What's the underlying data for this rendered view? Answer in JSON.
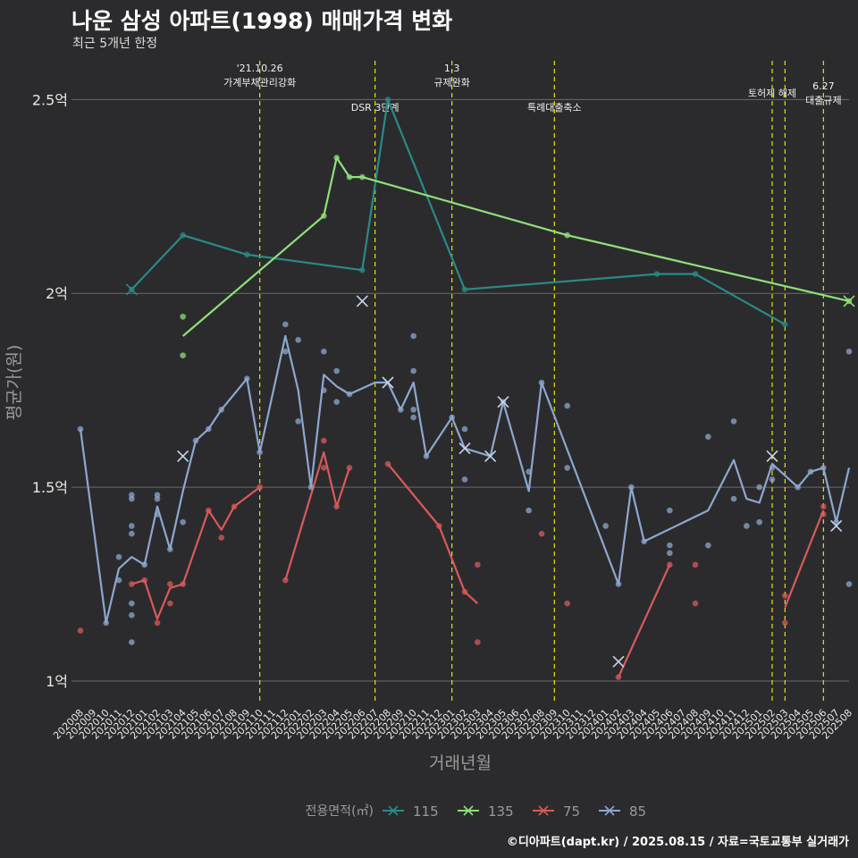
{
  "title": "나운 삼성 아파트(1998) 매매가격 변화",
  "subtitle": "최근 5개년 한정",
  "footer": "©디아파트(dapt.kr) / 2025.08.15 / 자료=국토교통부 실거래가",
  "colors": {
    "background": "#2b2b2d",
    "grid": "#6b6b6b",
    "event_line": "#e6e600",
    "text": "#e8e8e8",
    "axis_title": "#9a9a9a"
  },
  "chart_data": {
    "type": "line",
    "xlabel": "거래년월",
    "ylabel": "평균가(원)",
    "ylim": [
      0.94,
      2.6
    ],
    "yticks": [
      {
        "value": 1.0,
        "label": "1억"
      },
      {
        "value": 1.5,
        "label": "1.5억"
      },
      {
        "value": 2.0,
        "label": "2억"
      },
      {
        "value": 2.5,
        "label": "2.5억"
      }
    ],
    "grid": true,
    "legend": {
      "title": "전용면적(㎡)",
      "position": "bottom"
    },
    "categories": [
      "202008",
      "202009",
      "202010",
      "202011",
      "202012",
      "202101",
      "202102",
      "202103",
      "202104",
      "202105",
      "202106",
      "202107",
      "202108",
      "202109",
      "202110",
      "202111",
      "202112",
      "202201",
      "202202",
      "202203",
      "202204",
      "202205",
      "202206",
      "202207",
      "202208",
      "202209",
      "202210",
      "202211",
      "202212",
      "202301",
      "202302",
      "202303",
      "202304",
      "202305",
      "202306",
      "202307",
      "202308",
      "202309",
      "202310",
      "202311",
      "202312",
      "202401",
      "202402",
      "202403",
      "202404",
      "202405",
      "202406",
      "202407",
      "202408",
      "202409",
      "202410",
      "202411",
      "202412",
      "202501",
      "202502",
      "202503",
      "202504",
      "202505",
      "202506",
      "202507",
      "202508"
    ],
    "events": [
      {
        "x": "202110",
        "label": "'21.10.26\n가계부채관리강화",
        "row": 0
      },
      {
        "x": "202207",
        "label": "DSR 3단계",
        "row": 2
      },
      {
        "x": "202301",
        "label": "1.3\n규제완화",
        "row": 0
      },
      {
        "x": "202309",
        "label": "특례대출축소",
        "row": 2
      },
      {
        "x": "202502",
        "label": "토허제 해제",
        "row": 1
      },
      {
        "x": "202503",
        "label": "",
        "row": 0
      },
      {
        "x": "202506",
        "label": "6.27\n대출규제",
        "row": 3
      }
    ],
    "series": [
      {
        "name": "115",
        "color": "#2a8a86",
        "line": [
          [
            "202012",
            2.01
          ],
          [
            "202104",
            2.15
          ],
          [
            "202109",
            2.1
          ],
          [
            "202206",
            2.06
          ],
          [
            "202208",
            2.5
          ],
          [
            "202302",
            2.01
          ],
          [
            "202405",
            2.05
          ],
          [
            "202408",
            2.05
          ],
          [
            "202503",
            1.92
          ]
        ],
        "points": [
          [
            "202012",
            2.01
          ],
          [
            "202104",
            2.15
          ],
          [
            "202109",
            2.1
          ],
          [
            "202206",
            2.06
          ],
          [
            "202208",
            2.5
          ],
          [
            "202302",
            2.01
          ],
          [
            "202405",
            2.05
          ],
          [
            "202408",
            2.05
          ],
          [
            "202503",
            1.92
          ]
        ],
        "cross": [
          [
            "202012",
            2.01
          ]
        ]
      },
      {
        "name": "135",
        "color": "#8fe07a",
        "line": [
          [
            "202104",
            1.89
          ],
          [
            "202203",
            2.2
          ],
          [
            "202204",
            2.35
          ],
          [
            "202205",
            2.3
          ],
          [
            "202206",
            2.3
          ],
          [
            "202310",
            2.15
          ],
          [
            "202508",
            1.98
          ]
        ],
        "points": [
          [
            "202104",
            1.94
          ],
          [
            "202104",
            1.84
          ],
          [
            "202203",
            2.2
          ],
          [
            "202204",
            2.35
          ],
          [
            "202205",
            2.3
          ],
          [
            "202206",
            2.3
          ],
          [
            "202310",
            2.15
          ],
          [
            "202508",
            1.98
          ]
        ],
        "cross": [
          [
            "202508",
            1.98
          ]
        ]
      },
      {
        "name": "75",
        "color": "#d95a5a",
        "segments": [
          [
            [
              "202012",
              1.25
            ],
            [
              "202101",
              1.26
            ],
            [
              "202102",
              1.16
            ],
            [
              "202103",
              1.24
            ],
            [
              "202104",
              1.25
            ],
            [
              "202106",
              1.44
            ],
            [
              "202107",
              1.39
            ],
            [
              "202108",
              1.45
            ],
            [
              "202110",
              1.5
            ]
          ],
          [
            [
              "202112",
              1.26
            ],
            [
              "202203",
              1.59
            ],
            [
              "202204",
              1.45
            ],
            [
              "202205",
              1.55
            ]
          ],
          [
            [
              "202208",
              1.56
            ],
            [
              "202212",
              1.4
            ],
            [
              "202302",
              1.23
            ],
            [
              "202303",
              1.2
            ]
          ],
          [
            [
              "202402",
              1.01
            ],
            [
              "202406",
              1.3
            ]
          ],
          [
            [
              "202503",
              1.19
            ],
            [
              "202506",
              1.44
            ]
          ]
        ],
        "points": [
          [
            "202008",
            1.13
          ],
          [
            "202012",
            1.25
          ],
          [
            "202101",
            1.26
          ],
          [
            "202102",
            1.15
          ],
          [
            "202103",
            1.25
          ],
          [
            "202103",
            1.2
          ],
          [
            "202104",
            1.25
          ],
          [
            "202106",
            1.44
          ],
          [
            "202107",
            1.37
          ],
          [
            "202108",
            1.45
          ],
          [
            "202110",
            1.5
          ],
          [
            "202112",
            1.26
          ],
          [
            "202203",
            1.62
          ],
          [
            "202203",
            1.55
          ],
          [
            "202204",
            1.45
          ],
          [
            "202205",
            1.55
          ],
          [
            "202208",
            1.56
          ],
          [
            "202212",
            1.4
          ],
          [
            "202302",
            1.23
          ],
          [
            "202303",
            1.3
          ],
          [
            "202303",
            1.1
          ],
          [
            "202308",
            1.38
          ],
          [
            "202310",
            1.2
          ],
          [
            "202402",
            1.01
          ],
          [
            "202406",
            1.3
          ],
          [
            "202408",
            1.3
          ],
          [
            "202408",
            1.2
          ],
          [
            "202503",
            1.22
          ],
          [
            "202503",
            1.15
          ],
          [
            "202506",
            1.45
          ],
          [
            "202506",
            1.43
          ]
        ],
        "cross": []
      },
      {
        "name": "85",
        "color": "#8ea7cf",
        "line": [
          [
            "202008",
            1.65
          ],
          [
            "202010",
            1.15
          ],
          [
            "202011",
            1.29
          ],
          [
            "202012",
            1.32
          ],
          [
            "202101",
            1.3
          ],
          [
            "202102",
            1.45
          ],
          [
            "202103",
            1.34
          ],
          [
            "202104",
            1.49
          ],
          [
            "202105",
            1.62
          ],
          [
            "202106",
            1.65
          ],
          [
            "202107",
            1.7
          ],
          [
            "202109",
            1.78
          ],
          [
            "202110",
            1.59
          ],
          [
            "202112",
            1.89
          ],
          [
            "202201",
            1.75
          ],
          [
            "202202",
            1.5
          ],
          [
            "202203",
            1.79
          ],
          [
            "202204",
            1.76
          ],
          [
            "202205",
            1.74
          ],
          [
            "202207",
            1.77
          ],
          [
            "202208",
            1.77
          ],
          [
            "202209",
            1.7
          ],
          [
            "202210",
            1.77
          ],
          [
            "202211",
            1.58
          ],
          [
            "202301",
            1.68
          ],
          [
            "202302",
            1.6
          ],
          [
            "202304",
            1.58
          ],
          [
            "202305",
            1.72
          ],
          [
            "202307",
            1.49
          ],
          [
            "202308",
            1.77
          ],
          [
            "202402",
            1.25
          ],
          [
            "202403",
            1.5
          ],
          [
            "202404",
            1.36
          ],
          [
            "202409",
            1.44
          ],
          [
            "202411",
            1.57
          ],
          [
            "202412",
            1.47
          ],
          [
            "202501",
            1.46
          ],
          [
            "202502",
            1.56
          ],
          [
            "202504",
            1.5
          ],
          [
            "202505",
            1.54
          ],
          [
            "202506",
            1.55
          ],
          [
            "202507",
            1.41
          ],
          [
            "202508",
            1.55
          ]
        ],
        "points": [
          [
            "202008",
            1.65
          ],
          [
            "202010",
            1.15
          ],
          [
            "202011",
            1.32
          ],
          [
            "202011",
            1.26
          ],
          [
            "202012",
            1.48
          ],
          [
            "202012",
            1.47
          ],
          [
            "202012",
            1.4
          ],
          [
            "202012",
            1.38
          ],
          [
            "202012",
            1.2
          ],
          [
            "202012",
            1.17
          ],
          [
            "202012",
            1.1
          ],
          [
            "202101",
            1.3
          ],
          [
            "202102",
            1.48
          ],
          [
            "202102",
            1.47
          ],
          [
            "202102",
            1.43
          ],
          [
            "202103",
            1.34
          ],
          [
            "202104",
            1.41
          ],
          [
            "202105",
            1.62
          ],
          [
            "202106",
            1.65
          ],
          [
            "202107",
            1.7
          ],
          [
            "202109",
            1.78
          ],
          [
            "202110",
            1.59
          ],
          [
            "202112",
            1.92
          ],
          [
            "202112",
            1.85
          ],
          [
            "202201",
            1.88
          ],
          [
            "202201",
            1.67
          ],
          [
            "202202",
            1.5
          ],
          [
            "202203",
            1.85
          ],
          [
            "202203",
            1.75
          ],
          [
            "202204",
            1.8
          ],
          [
            "202204",
            1.72
          ],
          [
            "202205",
            1.74
          ],
          [
            "202209",
            1.7
          ],
          [
            "202210",
            1.89
          ],
          [
            "202210",
            1.8
          ],
          [
            "202210",
            1.7
          ],
          [
            "202210",
            1.68
          ],
          [
            "202211",
            1.58
          ],
          [
            "202301",
            1.68
          ],
          [
            "202302",
            1.65
          ],
          [
            "202302",
            1.52
          ],
          [
            "202305",
            1.72
          ],
          [
            "202307",
            1.54
          ],
          [
            "202307",
            1.44
          ],
          [
            "202308",
            1.77
          ],
          [
            "202310",
            1.71
          ],
          [
            "202310",
            1.55
          ],
          [
            "202401",
            1.4
          ],
          [
            "202402",
            1.25
          ],
          [
            "202403",
            1.5
          ],
          [
            "202404",
            1.36
          ],
          [
            "202406",
            1.44
          ],
          [
            "202406",
            1.35
          ],
          [
            "202406",
            1.33
          ],
          [
            "202409",
            1.63
          ],
          [
            "202409",
            1.35
          ],
          [
            "202411",
            1.67
          ],
          [
            "202411",
            1.47
          ],
          [
            "202412",
            1.4
          ],
          [
            "202501",
            1.5
          ],
          [
            "202501",
            1.41
          ],
          [
            "202502",
            1.55
          ],
          [
            "202502",
            1.52
          ],
          [
            "202504",
            1.5
          ],
          [
            "202505",
            1.54
          ],
          [
            "202506",
            1.55
          ],
          [
            "202507",
            1.41
          ],
          [
            "202508",
            1.85
          ],
          [
            "202508",
            1.25
          ]
        ],
        "cross": [
          [
            "202104",
            1.58
          ],
          [
            "202206",
            1.98
          ],
          [
            "202208",
            1.77
          ],
          [
            "202302",
            1.6
          ],
          [
            "202304",
            1.58
          ],
          [
            "202305",
            1.72
          ],
          [
            "202402",
            1.05
          ],
          [
            "202502",
            1.58
          ],
          [
            "202507",
            1.4
          ]
        ]
      }
    ]
  }
}
